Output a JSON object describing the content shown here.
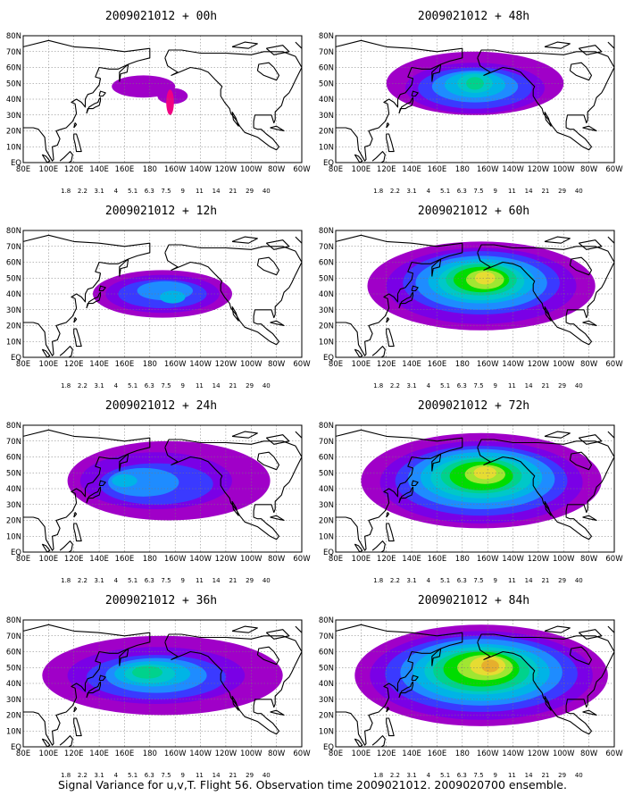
{
  "caption": "Signal Variance for u,v,T. Flight 56. Observation time 2009021012. 2009020700 ensemble.",
  "colorbar": {
    "levels": [
      "1.8",
      "2.2",
      "3.1",
      "4",
      "5.1",
      "6.3",
      "7.5",
      "9",
      "11",
      "14",
      "21",
      "29",
      "40"
    ],
    "colors": [
      "#a000c8",
      "#7a00e6",
      "#3a3aff",
      "#1e8cff",
      "#00b4e6",
      "#00c8c8",
      "#00d28c",
      "#00dc00",
      "#a0e632",
      "#e6dc32",
      "#e6af2d",
      "#f08228",
      "#fa3c3c",
      "#f00082"
    ]
  },
  "axes": {
    "lon_labels": [
      "80E",
      "100E",
      "120E",
      "140E",
      "160E",
      "180",
      "160W",
      "140W",
      "120W",
      "100W",
      "80W",
      "60W"
    ],
    "lat_labels": [
      "EQ",
      "10N",
      "20N",
      "30N",
      "40N",
      "50N",
      "60N",
      "70N",
      "80N"
    ]
  },
  "panels": [
    {
      "title": "2009021012 + 00h",
      "lead_hours": 0
    },
    {
      "title": "2009021012 + 48h",
      "lead_hours": 48
    },
    {
      "title": "2009021012 + 12h",
      "lead_hours": 12
    },
    {
      "title": "2009021012 + 60h",
      "lead_hours": 60
    },
    {
      "title": "2009021012 + 24h",
      "lead_hours": 24
    },
    {
      "title": "2009021012 + 72h",
      "lead_hours": 72
    },
    {
      "title": "2009021012 + 36h",
      "lead_hours": 36
    },
    {
      "title": "2009021012 + 84h",
      "lead_hours": 84
    }
  ]
}
